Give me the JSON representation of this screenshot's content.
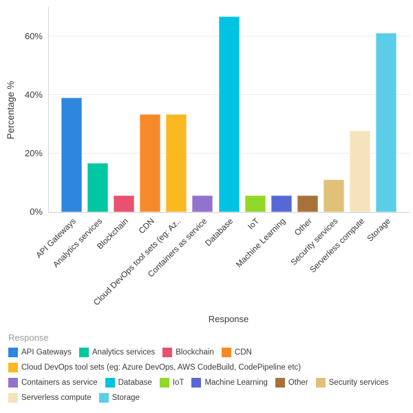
{
  "chart_data": {
    "type": "bar",
    "title": "",
    "xlabel": "Response",
    "ylabel": "Percentage %",
    "ylim": [
      0,
      70
    ],
    "yticks": [
      0,
      20,
      40,
      60
    ],
    "ytick_labels": [
      "0%",
      "20%",
      "40%",
      "60%"
    ],
    "grid": true,
    "legend_position": "bottom",
    "legend_title": "Response",
    "categories": [
      "API Gateways",
      "Analytics services",
      "Blockchain",
      "CDN",
      "Cloud DevOps tool sets (eg: Azure DevOps, AWS CodeBuild, CodePipeline etc)",
      "Containers as service",
      "Database",
      "IoT",
      "Machine Learning",
      "Other",
      "Security services",
      "Serverless compute",
      "Storage"
    ],
    "x_tick_labels": [
      "API Gateways",
      "Analytics services",
      "Blockchain",
      "CDN",
      "Cloud DevOps tool sets (eg: Az..",
      "Containers as service",
      "Database",
      "IoT",
      "Machine Learning",
      "Other",
      "Security services",
      "Serverless compute",
      "Storage"
    ],
    "values": [
      38.89,
      16.67,
      5.56,
      33.33,
      33.33,
      5.56,
      66.67,
      5.56,
      5.56,
      5.56,
      11.11,
      27.78,
      61.11
    ],
    "colors": [
      "#2E86DE",
      "#00C7A0",
      "#E8516F",
      "#F68A2B",
      "#FBB821",
      "#9173CE",
      "#00C3E4",
      "#92D829",
      "#5668D5",
      "#A9713A",
      "#E1C078",
      "#F5E3BC",
      "#5CCDE8"
    ],
    "legend_rows": [
      [
        0,
        1,
        2,
        3
      ],
      [
        4
      ],
      [
        5,
        6,
        7,
        8,
        9,
        10
      ],
      [
        11,
        12
      ]
    ]
  }
}
